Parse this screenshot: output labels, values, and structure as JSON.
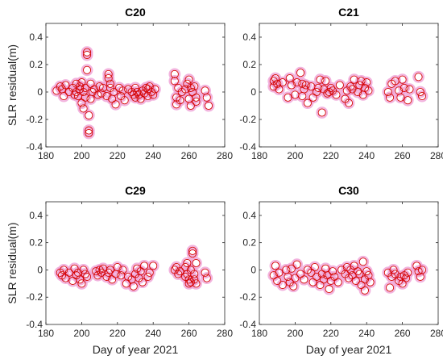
{
  "colors": {
    "marker_edge": "#d40000",
    "marker_halo": "#f0a6d8",
    "axis": "#262626",
    "background": "#ffffff"
  },
  "chart_data": [
    {
      "type": "scatter",
      "title": "C20",
      "xlabel": "",
      "ylabel": "SLR residual(m)",
      "xlim": [
        180,
        280
      ],
      "ylim": [
        -0.4,
        0.5
      ],
      "xticks": [
        "180",
        "200",
        "220",
        "240",
        "260",
        "280"
      ],
      "yticks": [
        "-0.4",
        "-0.2",
        "0",
        "0.2",
        "0.4"
      ],
      "x": [
        186,
        188,
        189,
        190,
        191,
        193,
        195,
        196,
        197,
        197,
        198,
        199,
        199,
        200,
        200,
        201,
        201,
        202,
        202,
        203,
        203,
        203,
        204,
        204,
        204,
        205,
        205,
        206,
        207,
        209,
        210,
        211,
        212,
        214,
        215,
        215,
        216,
        216,
        217,
        218,
        219,
        221,
        222,
        223,
        224,
        226,
        228,
        229,
        230,
        230,
        231,
        232,
        233,
        234,
        235,
        236,
        237,
        237,
        238,
        239,
        240,
        241,
        252,
        252,
        253,
        253,
        254,
        255,
        256,
        258,
        259,
        260,
        260,
        261,
        261,
        262,
        263,
        264,
        264,
        269,
        270,
        271
      ],
      "y": [
        0.01,
        0.04,
        0.02,
        -0.03,
        0.05,
        0.0,
        0.03,
        -0.02,
        0.06,
        0.0,
        -0.03,
        0.02,
        0.04,
        0.07,
        -0.08,
        0.0,
        -0.12,
        0.03,
        -0.04,
        0.29,
        0.27,
        0.16,
        -0.17,
        -0.28,
        -0.3,
        0.06,
        -0.05,
        0.0,
        0.02,
        -0.02,
        0.04,
        -0.01,
        0.03,
        -0.03,
        0.13,
        0.1,
        0.06,
        0.03,
        -0.05,
        0.0,
        -0.09,
        0.03,
        -0.03,
        0.01,
        -0.06,
        0.02,
        0.0,
        -0.02,
        -0.04,
        0.03,
        0.0,
        -0.02,
        -0.05,
        0.01,
        -0.01,
        0.03,
        0.02,
        -0.03,
        0.04,
        0.0,
        -0.02,
        0.02,
        0.13,
        0.08,
        -0.04,
        -0.09,
        0.03,
        -0.06,
        0.0,
        0.02,
        0.06,
        0.09,
        -0.05,
        0.03,
        -0.1,
        0.0,
        0.04,
        -0.04,
        -0.07,
        0.01,
        -0.04,
        -0.1
      ]
    },
    {
      "type": "scatter",
      "title": "C21",
      "xlabel": "",
      "ylabel": "",
      "xlim": [
        180,
        280
      ],
      "ylim": [
        -0.4,
        0.5
      ],
      "xticks": [
        "180",
        "200",
        "220",
        "240",
        "260",
        "280"
      ],
      "yticks": [
        "-0.4",
        "-0.2",
        "0",
        "0.2",
        "0.4"
      ],
      "x": [
        188,
        188,
        189,
        190,
        191,
        193,
        196,
        197,
        198,
        200,
        201,
        203,
        204,
        204,
        205,
        206,
        207,
        209,
        210,
        212,
        213,
        214,
        215,
        216,
        217,
        218,
        219,
        220,
        221,
        223,
        225,
        228,
        229,
        230,
        231,
        232,
        233,
        235,
        236,
        237,
        238,
        239,
        240,
        241,
        252,
        253,
        254,
        256,
        258,
        259,
        260,
        261,
        263,
        264,
        269,
        270,
        271
      ],
      "y": [
        0.08,
        0.04,
        0.1,
        0.06,
        0.02,
        0.07,
        -0.04,
        0.1,
        0.05,
        -0.02,
        0.07,
        0.14,
        0.06,
        -0.03,
        0.02,
        0.05,
        -0.08,
        0.04,
        -0.04,
        0.0,
        0.03,
        0.09,
        -0.15,
        0.02,
        0.08,
        -0.01,
        0.0,
        0.03,
        0.01,
        -0.02,
        0.05,
        -0.05,
        0.01,
        -0.08,
        0.04,
        0.02,
        0.09,
        0.0,
        0.05,
        0.08,
        -0.02,
        0.03,
        0.07,
        0.01,
        0.0,
        -0.04,
        0.06,
        0.08,
        0.01,
        -0.04,
        0.09,
        0.03,
        -0.06,
        0.02,
        0.11,
        0.0,
        -0.03
      ]
    },
    {
      "type": "scatter",
      "title": "C29",
      "xlabel": "Day of year 2021",
      "ylabel": "SLR residual(m)",
      "xlim": [
        180,
        280
      ],
      "ylim": [
        -0.4,
        0.5
      ],
      "xticks": [
        "180",
        "200",
        "220",
        "240",
        "260",
        "280"
      ],
      "yticks": [
        "-0.4",
        "-0.2",
        "0",
        "0.2",
        "0.4"
      ],
      "x": [
        188,
        189,
        190,
        191,
        193,
        195,
        196,
        197,
        198,
        199,
        200,
        201,
        202,
        203,
        208,
        209,
        210,
        211,
        212,
        214,
        215,
        216,
        217,
        219,
        220,
        222,
        223,
        225,
        226,
        228,
        229,
        230,
        231,
        232,
        233,
        234,
        235,
        237,
        238,
        240,
        252,
        253,
        254,
        255,
        258,
        258,
        259,
        259,
        260,
        260,
        261,
        261,
        262,
        262,
        263,
        263,
        264,
        264,
        269,
        270
      ],
      "y": [
        -0.02,
        -0.04,
        0.0,
        -0.06,
        -0.02,
        -0.08,
        0.01,
        -0.04,
        -0.02,
        -0.07,
        -0.1,
        0.0,
        -0.03,
        -0.05,
        -0.01,
        -0.04,
        0.0,
        -0.02,
        0.01,
        -0.05,
        -0.02,
        0.0,
        -0.07,
        -0.03,
        0.02,
        -0.04,
        0.0,
        -0.1,
        -0.05,
        -0.07,
        -0.12,
        -0.03,
        0.01,
        -0.06,
        -0.01,
        -0.09,
        0.03,
        -0.05,
        -0.02,
        0.03,
        0.0,
        0.02,
        -0.03,
        -0.01,
        0.02,
        -0.05,
        0.05,
        -0.03,
        -0.07,
        -0.1,
        -0.09,
        0.0,
        0.14,
        0.12,
        -0.03,
        -0.07,
        0.05,
        -0.1,
        -0.02,
        -0.06
      ]
    },
    {
      "type": "scatter",
      "title": "C30",
      "xlabel": "Day of year 2021",
      "ylabel": "",
      "xlim": [
        180,
        280
      ],
      "ylim": [
        -0.4,
        0.5
      ],
      "xticks": [
        "180",
        "200",
        "220",
        "240",
        "260",
        "280"
      ],
      "yticks": [
        "-0.4",
        "-0.2",
        "0",
        "0.2",
        "0.4"
      ],
      "x": [
        188,
        189,
        190,
        191,
        193,
        195,
        196,
        197,
        198,
        199,
        200,
        201,
        203,
        205,
        207,
        209,
        210,
        211,
        212,
        214,
        215,
        216,
        217,
        218,
        219,
        220,
        221,
        222,
        224,
        226,
        228,
        229,
        230,
        231,
        232,
        233,
        234,
        235,
        236,
        237,
        238,
        239,
        239,
        240,
        241,
        242,
        252,
        253,
        254,
        255,
        256,
        258,
        259,
        260,
        261,
        262,
        263,
        268,
        269,
        270,
        271
      ],
      "y": [
        -0.04,
        0.03,
        -0.08,
        -0.02,
        -0.11,
        0.0,
        -0.05,
        -0.09,
        0.01,
        -0.12,
        -0.06,
        0.04,
        -0.03,
        -0.07,
        0.0,
        -0.02,
        -0.09,
        0.02,
        -0.05,
        -0.11,
        -0.03,
        -0.07,
        0.01,
        -0.04,
        -0.14,
        -0.08,
        -0.01,
        -0.05,
        -0.09,
        0.0,
        -0.03,
        0.02,
        -0.06,
        0.0,
        -0.04,
        0.03,
        -0.08,
        -0.01,
        -0.03,
        -0.11,
        0.06,
        -0.07,
        -0.15,
        -0.01,
        -0.04,
        -0.09,
        -0.02,
        -0.13,
        -0.05,
        0.0,
        -0.03,
        -0.08,
        -0.05,
        -0.1,
        -0.04,
        -0.06,
        -0.02,
        0.03,
        -0.01,
        -0.05,
        0.0
      ]
    }
  ]
}
